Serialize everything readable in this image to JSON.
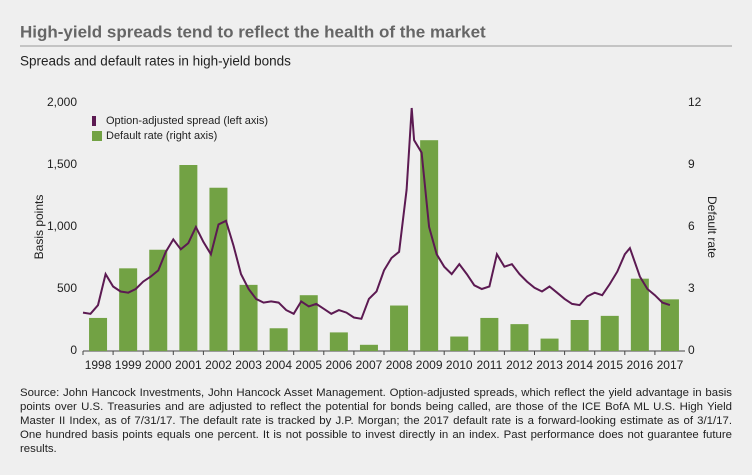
{
  "chart_data": {
    "type": "combo",
    "title": "High-yield spreads tend to reflect the health of the market",
    "subtitle": "Spreads and default rates in high-yield bonds",
    "y_label": "Basis points",
    "y2_label": "Default rate",
    "categories": [
      "1998",
      "1999",
      "2000",
      "2001",
      "2002",
      "2003",
      "2004",
      "2005",
      "2006",
      "2007",
      "2008",
      "2009",
      "2010",
      "2011",
      "2012",
      "2013",
      "2014",
      "2015",
      "2016",
      "2017"
    ],
    "xlim": [
      1998,
      2018
    ],
    "ylim": [
      0,
      2000
    ],
    "yticks": [
      0,
      500,
      {
        "value": 1000,
        "label": "1,000"
      },
      {
        "value": 1500,
        "label": "1,500"
      },
      {
        "value": 2000,
        "label": "2,000"
      }
    ],
    "y2lim": [
      0,
      12
    ],
    "y2ticks": [
      0,
      3,
      6,
      9,
      12
    ],
    "legend": "top-left",
    "series": [
      {
        "name": "Option-adjusted spread (left axis)",
        "type": "line",
        "color": "#5c1a52",
        "x": [
          1998.0,
          1998.25,
          1998.5,
          1998.75,
          1999.0,
          1999.25,
          1999.5,
          1999.75,
          2000.0,
          2000.25,
          2000.5,
          2000.75,
          2001.0,
          2001.25,
          2001.5,
          2001.75,
          2002.0,
          2002.25,
          2002.5,
          2002.75,
          2003.0,
          2003.25,
          2003.5,
          2003.75,
          2004.0,
          2004.25,
          2004.5,
          2004.75,
          2005.0,
          2005.25,
          2005.5,
          2005.75,
          2006.0,
          2006.25,
          2006.5,
          2006.75,
          2007.0,
          2007.25,
          2007.5,
          2007.75,
          2008.0,
          2008.25,
          2008.5,
          2008.75,
          2008.92,
          2009.0,
          2009.25,
          2009.5,
          2009.75,
          2010.0,
          2010.25,
          2010.5,
          2010.75,
          2011.0,
          2011.25,
          2011.5,
          2011.75,
          2012.0,
          2012.25,
          2012.5,
          2012.75,
          2013.0,
          2013.25,
          2013.5,
          2013.75,
          2014.0,
          2014.25,
          2014.5,
          2014.75,
          2015.0,
          2015.25,
          2015.5,
          2015.75,
          2016.0,
          2016.17,
          2016.5,
          2016.75,
          2017.0,
          2017.25,
          2017.5
        ],
        "values": [
          310,
          300,
          370,
          620,
          520,
          480,
          470,
          500,
          560,
          600,
          650,
          800,
          900,
          820,
          870,
          1000,
          880,
          780,
          1020,
          1050,
          850,
          620,
          500,
          420,
          390,
          400,
          390,
          330,
          300,
          400,
          360,
          380,
          340,
          300,
          330,
          310,
          270,
          260,
          420,
          480,
          650,
          750,
          800,
          1300,
          1960,
          1700,
          1600,
          1000,
          780,
          680,
          620,
          700,
          620,
          530,
          500,
          520,
          780,
          680,
          700,
          620,
          560,
          510,
          480,
          520,
          470,
          420,
          380,
          370,
          440,
          470,
          450,
          540,
          640,
          780,
          830,
          600,
          500,
          450,
          390,
          370
        ]
      },
      {
        "name": "Default rate (right axis)",
        "type": "bar",
        "axis": "y2",
        "color": "#72a244",
        "values": [
          1.6,
          4.0,
          4.9,
          9.0,
          7.9,
          3.2,
          1.1,
          2.7,
          0.9,
          0.3,
          2.2,
          10.2,
          0.7,
          1.6,
          1.3,
          0.6,
          1.5,
          1.7,
          3.5,
          2.5
        ]
      }
    ],
    "source": "Source: John Hancock Investments, John Hancock Asset Management. Option-adjusted spreads, which reflect the yield advantage in basis points over U.S. Treasuries and are adjusted to reflect the potential for bonds being called, are those of the ICE BofA ML U.S. High Yield Master II Index, as of 7/31/17. The default rate is tracked by J.P. Morgan; the 2017 default rate is a forward-looking estimate as of 3/1/17. One hundred basis points equals one percent. It is not possible to invest directly in an index. Past performance does not guarantee future results."
  }
}
